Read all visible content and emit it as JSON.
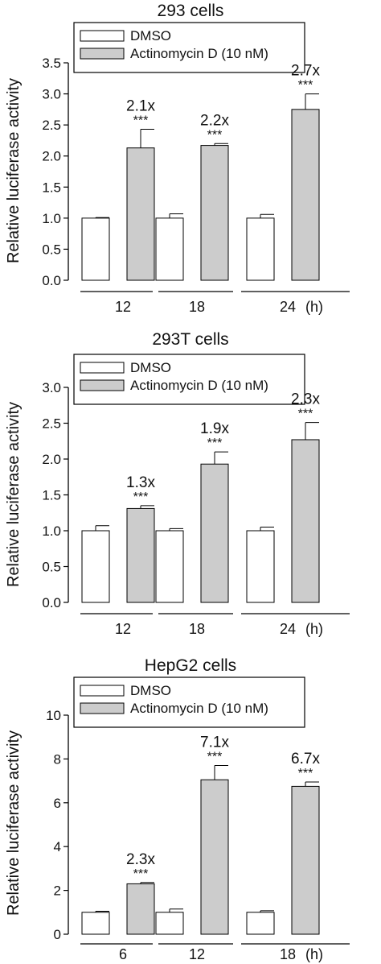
{
  "chart_data": [
    {
      "type": "bar",
      "title": "293 cells",
      "ylabel": "Relative luciferase activity",
      "xlabel": "",
      "unit": "(h)",
      "categories": [
        "12",
        "18",
        "24"
      ],
      "ylim": [
        0,
        3.5
      ],
      "yticks": [
        0.0,
        0.5,
        1.0,
        1.5,
        2.0,
        2.5,
        3.0,
        3.5
      ],
      "ytick_decimals": 1,
      "legend_position": "top",
      "series": [
        {
          "name": "DMSO",
          "values": [
            1.0,
            1.0,
            1.0
          ],
          "errors": [
            0.01,
            0.07,
            0.06
          ],
          "color": "#ffffff"
        },
        {
          "name": "Actinomycin D (10 nM)",
          "values": [
            2.13,
            2.17,
            2.75
          ],
          "errors": [
            0.3,
            0.03,
            0.25
          ],
          "color": "#cccccc"
        }
      ],
      "annotations": [
        {
          "fold": "2.1x",
          "sig": "***"
        },
        {
          "fold": "2.2x",
          "sig": "***"
        },
        {
          "fold": "2.7x",
          "sig": "***"
        }
      ]
    },
    {
      "type": "bar",
      "title": "293T cells",
      "ylabel": "Relative luciferase activity",
      "xlabel": "",
      "unit": "(h)",
      "categories": [
        "12",
        "18",
        "24"
      ],
      "ylim": [
        0,
        3.0
      ],
      "yticks": [
        0.0,
        0.5,
        1.0,
        1.5,
        2.0,
        2.5,
        3.0
      ],
      "ytick_decimals": 1,
      "legend_position": "top",
      "series": [
        {
          "name": "DMSO",
          "values": [
            1.0,
            1.0,
            1.0
          ],
          "errors": [
            0.07,
            0.03,
            0.05
          ],
          "color": "#ffffff"
        },
        {
          "name": "Actinomycin D (10 nM)",
          "values": [
            1.31,
            1.93,
            2.27
          ],
          "errors": [
            0.04,
            0.17,
            0.24
          ],
          "color": "#cccccc"
        }
      ],
      "annotations": [
        {
          "fold": "1.3x",
          "sig": "***"
        },
        {
          "fold": "1.9x",
          "sig": "***"
        },
        {
          "fold": "2.3x",
          "sig": "***"
        }
      ]
    },
    {
      "type": "bar",
      "title": "HepG2 cells",
      "ylabel": "Relative luciferase activity",
      "xlabel": "",
      "unit": "(h)",
      "categories": [
        "6",
        "12",
        "18"
      ],
      "ylim": [
        0,
        10
      ],
      "yticks": [
        0,
        2,
        4,
        6,
        8,
        10
      ],
      "ytick_decimals": 0,
      "legend_position": "top",
      "series": [
        {
          "name": "DMSO",
          "values": [
            1.0,
            1.0,
            1.0
          ],
          "errors": [
            0.05,
            0.15,
            0.07
          ],
          "color": "#ffffff"
        },
        {
          "name": "Actinomycin D (10 nM)",
          "values": [
            2.3,
            7.05,
            6.75
          ],
          "errors": [
            0.06,
            0.65,
            0.2
          ],
          "color": "#cccccc"
        }
      ],
      "annotations": [
        {
          "fold": "2.3x",
          "sig": "***"
        },
        {
          "fold": "7.1x",
          "sig": "***"
        },
        {
          "fold": "6.7x",
          "sig": "***"
        }
      ]
    }
  ]
}
